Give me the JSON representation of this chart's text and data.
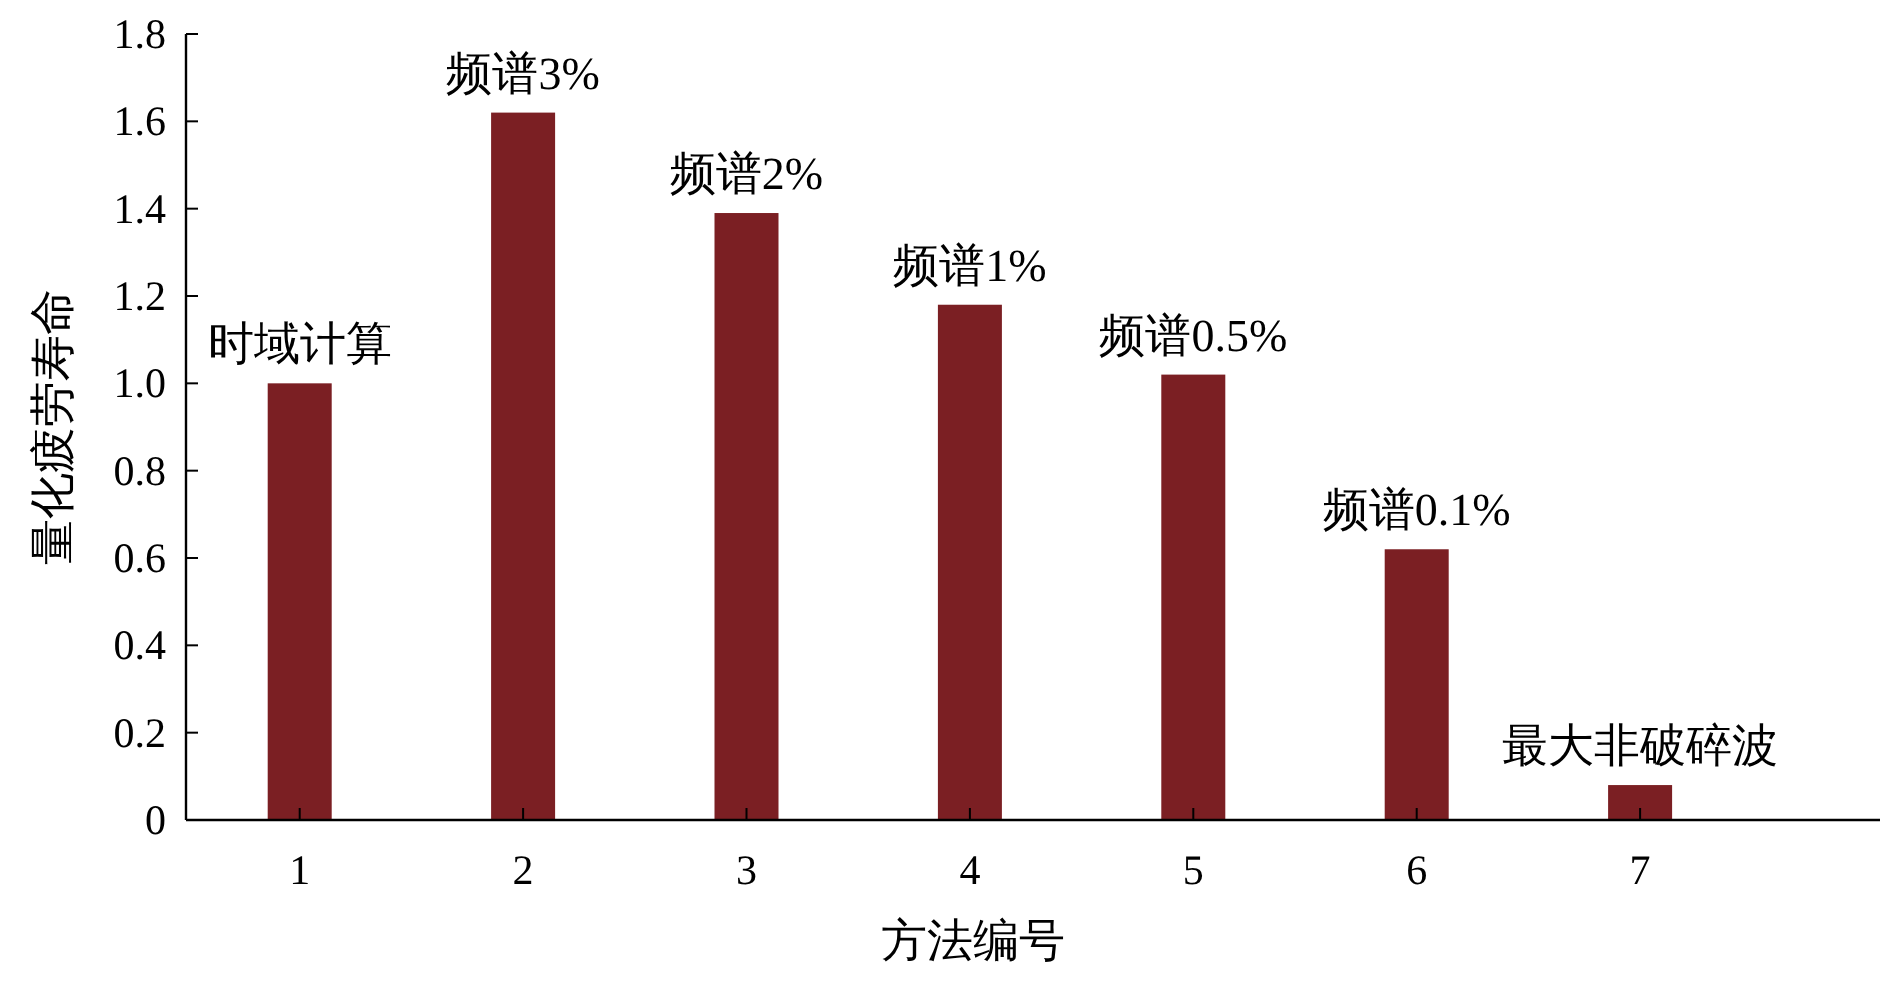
{
  "chart_data": {
    "type": "bar",
    "xlabel": "方法编号",
    "ylabel": "量化疲劳寿命",
    "categories": [
      "1",
      "2",
      "3",
      "4",
      "5",
      "6",
      "7"
    ],
    "values": [
      1.0,
      1.62,
      1.39,
      1.18,
      1.02,
      0.62,
      0.08
    ],
    "color": "#7b1f23",
    "ylim": [
      0,
      1.8
    ],
    "yticks": [
      0,
      0.2,
      0.4,
      0.6,
      0.8,
      {
        "value": 1,
        "label": "1.0"
      },
      1.2,
      1.4,
      1.6,
      1.8
    ],
    "annotations": [
      {
        "text": "时域计算",
        "x": "1",
        "y": 1.0
      },
      {
        "text": "频谱3%",
        "x": "2",
        "y": 1.62
      },
      {
        "text": "频谱2%",
        "x": "3",
        "y": 1.39
      },
      {
        "text": "频谱1%",
        "x": "4",
        "y": 1.18
      },
      {
        "text": "频谱0.5%",
        "x": "5",
        "y": 1.02
      },
      {
        "text": "频谱0.1%",
        "x": "6",
        "y": 0.62
      },
      {
        "text": "最大非破碎波",
        "x": "7",
        "y": 0.08
      }
    ],
    "grid": false
  }
}
